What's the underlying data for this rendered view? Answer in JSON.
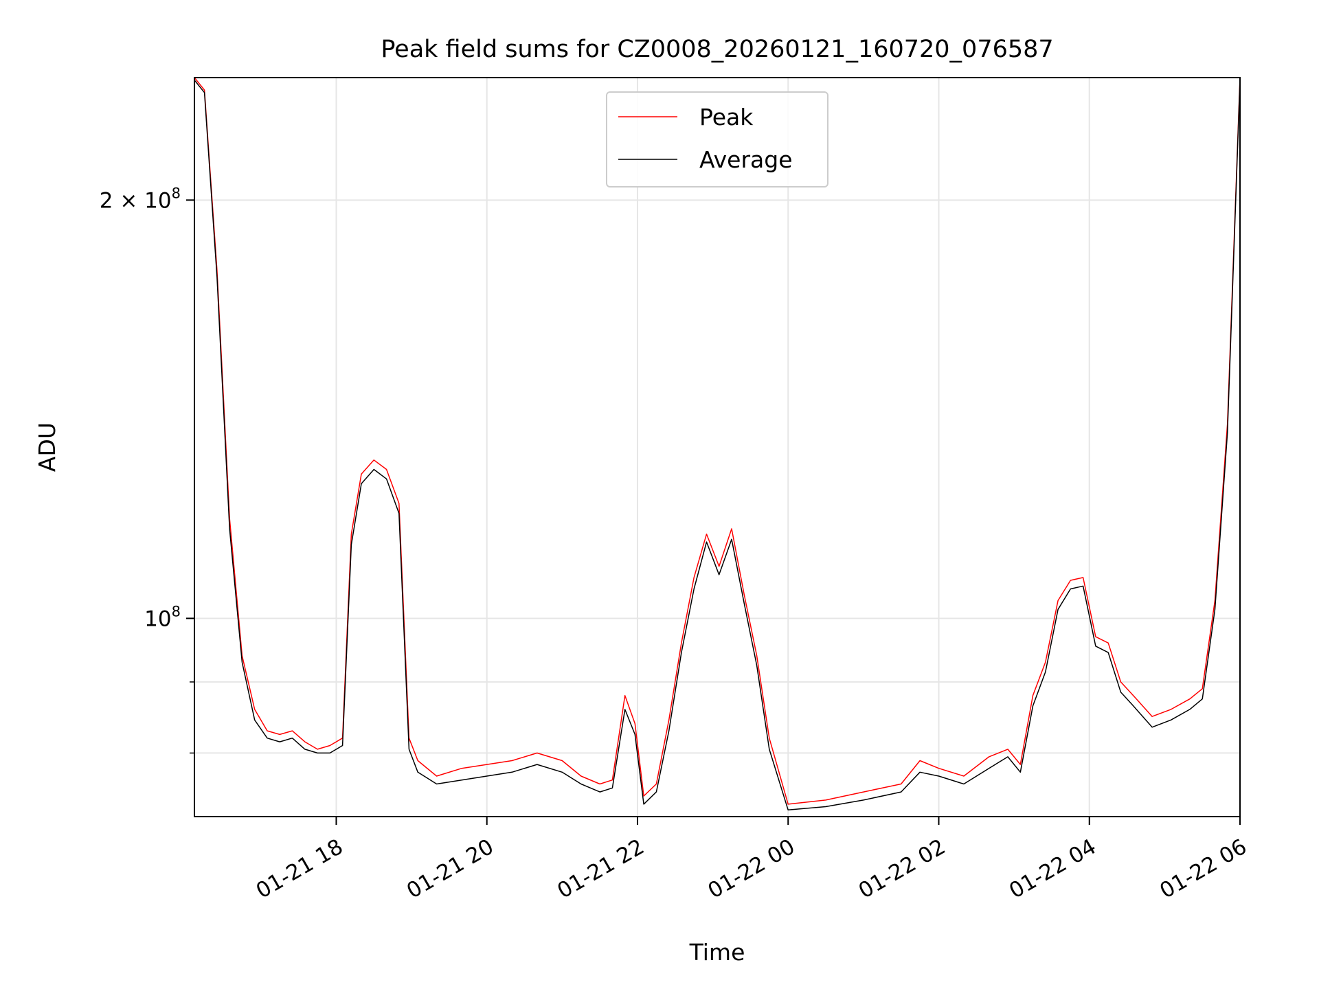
{
  "chart_data": {
    "type": "line",
    "title": "Peak field sums for CZ0008_20260121_160720_076587",
    "xlabel": "Time",
    "ylabel": "ADU",
    "yscale": "log",
    "ylim": [
      72000000,
      245000000
    ],
    "xlim": [
      "2026-01-21 16:07",
      "2026-01-22 06:00"
    ],
    "grid": true,
    "legend_position": "top-center",
    "x_tick_labels": [
      "01-21 18",
      "01-21 20",
      "01-21 22",
      "01-22 00",
      "01-22 02",
      "01-22 04",
      "01-22 06"
    ],
    "x_tick_values": [
      "2026-01-21 18:00",
      "2026-01-21 20:00",
      "2026-01-21 22:00",
      "2026-01-22 00:00",
      "2026-01-22 02:00",
      "2026-01-22 04:00",
      "2026-01-22 06:00"
    ],
    "y_ticks": [
      {
        "value": 200000000,
        "label_base": "2 × 10",
        "label_exp": "8"
      },
      {
        "value": 100000000,
        "label_base": "10",
        "label_exp": "8"
      }
    ],
    "y_minor_ticks": [
      90000000,
      80000000
    ],
    "colors": {
      "Peak": "#ff0000",
      "Average": "#000000"
    },
    "series": [
      {
        "name": "Peak",
        "x": [
          "2026-01-21 16:07",
          "2026-01-21 16:15",
          "2026-01-21 16:25",
          "2026-01-21 16:35",
          "2026-01-21 16:45",
          "2026-01-21 16:55",
          "2026-01-21 17:05",
          "2026-01-21 17:15",
          "2026-01-21 17:25",
          "2026-01-21 17:35",
          "2026-01-21 17:45",
          "2026-01-21 17:55",
          "2026-01-21 18:05",
          "2026-01-21 18:12",
          "2026-01-21 18:20",
          "2026-01-21 18:30",
          "2026-01-21 18:40",
          "2026-01-21 18:50",
          "2026-01-21 18:58",
          "2026-01-21 19:05",
          "2026-01-21 19:20",
          "2026-01-21 19:40",
          "2026-01-21 20:00",
          "2026-01-21 20:20",
          "2026-01-21 20:40",
          "2026-01-21 21:00",
          "2026-01-21 21:15",
          "2026-01-21 21:30",
          "2026-01-21 21:40",
          "2026-01-21 21:50",
          "2026-01-21 21:58",
          "2026-01-21 22:05",
          "2026-01-21 22:15",
          "2026-01-21 22:25",
          "2026-01-21 22:35",
          "2026-01-21 22:45",
          "2026-01-21 22:55",
          "2026-01-21 23:05",
          "2026-01-21 23:15",
          "2026-01-21 23:25",
          "2026-01-21 23:35",
          "2026-01-21 23:45",
          "2026-01-22 00:00",
          "2026-01-22 00:30",
          "2026-01-22 01:00",
          "2026-01-22 01:30",
          "2026-01-22 01:45",
          "2026-01-22 02:00",
          "2026-01-22 02:20",
          "2026-01-22 02:40",
          "2026-01-22 02:55",
          "2026-01-22 03:05",
          "2026-01-22 03:15",
          "2026-01-22 03:25",
          "2026-01-22 03:35",
          "2026-01-22 03:45",
          "2026-01-22 03:55",
          "2026-01-22 04:05",
          "2026-01-22 04:15",
          "2026-01-22 04:25",
          "2026-01-22 04:35",
          "2026-01-22 04:50",
          "2026-01-22 05:05",
          "2026-01-22 05:20",
          "2026-01-22 05:30",
          "2026-01-22 05:40",
          "2026-01-22 05:50",
          "2026-01-22 06:00"
        ],
        "y": [
          245000000,
          240000000,
          178000000,
          118000000,
          94000000,
          86000000,
          83000000,
          82500000,
          83000000,
          81500000,
          80500000,
          81000000,
          82000000,
          115000000,
          127000000,
          130000000,
          128000000,
          121000000,
          82000000,
          79000000,
          77000000,
          78000000,
          78500000,
          79000000,
          80000000,
          79000000,
          77000000,
          76000000,
          76500000,
          88000000,
          84000000,
          74500000,
          76000000,
          84500000,
          96000000,
          107000000,
          115000000,
          109000000,
          116000000,
          104000000,
          94000000,
          82000000,
          73500000,
          74000000,
          75000000,
          76000000,
          79000000,
          78000000,
          77000000,
          79500000,
          80500000,
          78500000,
          88000000,
          93000000,
          103000000,
          106500000,
          107000000,
          97000000,
          96000000,
          90000000,
          88000000,
          85000000,
          86000000,
          87500000,
          89000000,
          103000000,
          138000000,
          245000000
        ]
      },
      {
        "name": "Average",
        "x": [
          "2026-01-21 16:07",
          "2026-01-21 16:15",
          "2026-01-21 16:25",
          "2026-01-21 16:35",
          "2026-01-21 16:45",
          "2026-01-21 16:55",
          "2026-01-21 17:05",
          "2026-01-21 17:15",
          "2026-01-21 17:25",
          "2026-01-21 17:35",
          "2026-01-21 17:45",
          "2026-01-21 17:55",
          "2026-01-21 18:05",
          "2026-01-21 18:12",
          "2026-01-21 18:20",
          "2026-01-21 18:30",
          "2026-01-21 18:40",
          "2026-01-21 18:50",
          "2026-01-21 18:58",
          "2026-01-21 19:05",
          "2026-01-21 19:20",
          "2026-01-21 19:40",
          "2026-01-21 20:00",
          "2026-01-21 20:20",
          "2026-01-21 20:40",
          "2026-01-21 21:00",
          "2026-01-21 21:15",
          "2026-01-21 21:30",
          "2026-01-21 21:40",
          "2026-01-21 21:50",
          "2026-01-21 21:58",
          "2026-01-21 22:05",
          "2026-01-21 22:15",
          "2026-01-21 22:25",
          "2026-01-21 22:35",
          "2026-01-21 22:45",
          "2026-01-21 22:55",
          "2026-01-21 23:05",
          "2026-01-21 23:15",
          "2026-01-21 23:25",
          "2026-01-21 23:35",
          "2026-01-21 23:45",
          "2026-01-22 00:00",
          "2026-01-22 00:30",
          "2026-01-22 01:00",
          "2026-01-22 01:30",
          "2026-01-22 01:45",
          "2026-01-22 02:00",
          "2026-01-22 02:20",
          "2026-01-22 02:40",
          "2026-01-22 02:55",
          "2026-01-22 03:05",
          "2026-01-22 03:15",
          "2026-01-22 03:25",
          "2026-01-22 03:35",
          "2026-01-22 03:45",
          "2026-01-22 03:55",
          "2026-01-22 04:05",
          "2026-01-22 04:15",
          "2026-01-22 04:25",
          "2026-01-22 04:35",
          "2026-01-22 04:50",
          "2026-01-22 05:05",
          "2026-01-22 05:20",
          "2026-01-22 05:30",
          "2026-01-22 05:40",
          "2026-01-22 05:50",
          "2026-01-22 06:00"
        ],
        "y": [
          244000000,
          239000000,
          176000000,
          116000000,
          93000000,
          84500000,
          82000000,
          81500000,
          82000000,
          80500000,
          80000000,
          80000000,
          81000000,
          113000000,
          125000000,
          128000000,
          126000000,
          119000000,
          80500000,
          77500000,
          76000000,
          76500000,
          77000000,
          77500000,
          78500000,
          77500000,
          76000000,
          75000000,
          75500000,
          86000000,
          82500000,
          73500000,
          75000000,
          83000000,
          94500000,
          105000000,
          113500000,
          107500000,
          114000000,
          102500000,
          92500000,
          80500000,
          72800000,
          73200000,
          74000000,
          75000000,
          77500000,
          77000000,
          76000000,
          78000000,
          79500000,
          77500000,
          86500000,
          91500000,
          101500000,
          105000000,
          105500000,
          95500000,
          94500000,
          88500000,
          86500000,
          83500000,
          84500000,
          86000000,
          87500000,
          101500000,
          136000000,
          244000000
        ]
      }
    ]
  }
}
